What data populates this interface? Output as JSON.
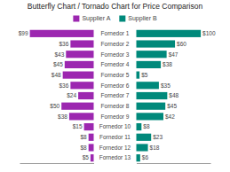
{
  "chart_data": {
    "type": "bar",
    "orientation": "horizontal",
    "title": "Butterfly Chart / Tornado Chart for Price Comparison",
    "categories": [
      "Fornedor 1",
      "Fornedor 2",
      "Fornedor 3",
      "Fornedor 4",
      "Fornedor 5",
      "Fornedor 6",
      "Fornedor 7",
      "Fornedor 8",
      "Fornedor 9",
      "Fornedor 10",
      "Fornedor 11",
      "Fornedor 12",
      "Fornedor 13"
    ],
    "series": [
      {
        "name": "Supplier A",
        "color": "#9c27b0",
        "values": [
          99,
          36,
          43,
          45,
          48,
          36,
          24,
          50,
          38,
          15,
          8,
          8,
          5
        ],
        "value_labels": [
          "$99",
          "$36",
          "$43",
          "$45",
          "$48",
          "$36",
          "$24",
          "$50",
          "$38",
          "$15",
          "$8",
          "$8",
          "$5"
        ]
      },
      {
        "name": "Supplier B",
        "color": "#00897b",
        "values": [
          100,
          60,
          47,
          38,
          5,
          35,
          48,
          45,
          42,
          8,
          23,
          18,
          6
        ],
        "value_labels": [
          "$100",
          "$60",
          "$47",
          "$38",
          "$5",
          "$35",
          "$48",
          "$45",
          "$42",
          "$8",
          "$23",
          "$18",
          "$6"
        ]
      }
    ],
    "xlim": [
      0,
      115
    ],
    "data_labels": true,
    "tick_labels": false,
    "grid": false,
    "legend": "top"
  }
}
